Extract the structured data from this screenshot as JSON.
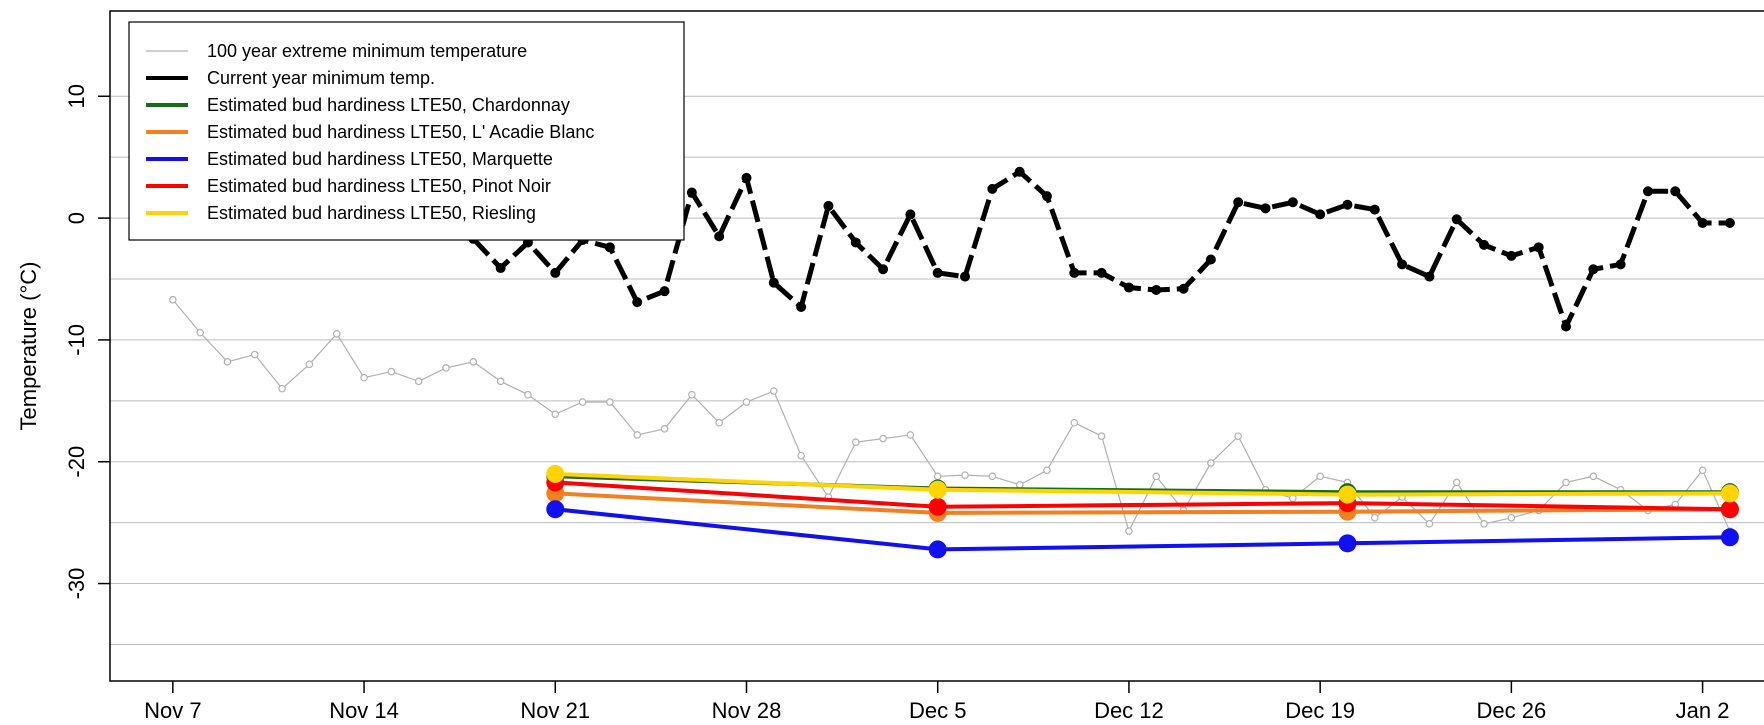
{
  "chart_data": {
    "type": "line",
    "title": "",
    "xlabel": "",
    "ylabel": "Temperature (°C)",
    "ylim": [
      -38,
      17
    ],
    "y_ticks": [
      10,
      0,
      -10,
      -20,
      -30
    ],
    "y_gridlines": [
      10,
      5,
      0,
      -5,
      -10,
      -15,
      -20,
      -25,
      -30,
      -35
    ],
    "x_tick_labels": [
      "Nov 7",
      "Nov 14",
      "Nov 21",
      "Nov 28",
      "Dec 5",
      "Dec 12",
      "Dec 19",
      "Dec 26",
      "Jan 2"
    ],
    "x_tick_days": [
      0,
      7,
      14,
      21,
      28,
      35,
      42,
      49,
      56
    ],
    "x_range_days": [
      -2.3,
      59.2
    ],
    "grid": "horizontal",
    "legend_position": "top-left",
    "series": [
      {
        "name": "100 year extreme minimum temperature",
        "color": "#b0b0b0",
        "style": "thin-line-open-points",
        "x_days": [
          0,
          1,
          2,
          3,
          4,
          5,
          6,
          7,
          8,
          9,
          10,
          11,
          12,
          13,
          14,
          15,
          16,
          17,
          18,
          19,
          20,
          21,
          22,
          23,
          24,
          25,
          26,
          27,
          28,
          29,
          30,
          31,
          32,
          33,
          34,
          35,
          36,
          37,
          38,
          39,
          40,
          41,
          42,
          43,
          44,
          45,
          46,
          47,
          48,
          49,
          50,
          51,
          52,
          53,
          54,
          55,
          56,
          57
        ],
        "values": [
          -6.7,
          -9.4,
          -11.8,
          -11.2,
          -14.0,
          -12.0,
          -9.5,
          -13.1,
          -12.6,
          -13.4,
          -12.3,
          -11.8,
          -13.4,
          -14.5,
          -16.1,
          -15.1,
          -15.1,
          -17.8,
          -17.3,
          -14.5,
          -16.8,
          -15.1,
          -14.2,
          -19.5,
          -22.9,
          -18.4,
          -18.1,
          -17.8,
          -21.2,
          -21.1,
          -21.2,
          -21.9,
          -20.7,
          -16.8,
          -17.9,
          -25.7,
          -21.2,
          -24.0,
          -20.1,
          -17.9,
          -22.3,
          -23.0,
          -21.2,
          -21.7,
          -24.6,
          -22.9,
          -25.1,
          -21.7,
          -25.1,
          -24.6,
          -24.0,
          -21.7,
          -21.2,
          -22.3,
          -24.0,
          -23.5,
          -20.7,
          -25.7
        ]
      },
      {
        "name": "Current year minimum temp.",
        "color": "#000000",
        "style": "thick-dashed-filled-points",
        "x_days": [
          11,
          12,
          13,
          14,
          15,
          16,
          17,
          18,
          19,
          20,
          21,
          22,
          23,
          24,
          25,
          26,
          27,
          28,
          29,
          30,
          31,
          32,
          33,
          34,
          35,
          36,
          37,
          38,
          39,
          40,
          41,
          42,
          43,
          44,
          45,
          46,
          47,
          48,
          49,
          50,
          51,
          52,
          53,
          54,
          55,
          56,
          57
        ],
        "values": [
          -1.7,
          -4.1,
          -2.0,
          -4.5,
          -1.8,
          -2.4,
          -6.9,
          -6.0,
          2.1,
          -1.5,
          3.3,
          -5.3,
          -7.3,
          1.0,
          -2.0,
          -4.2,
          0.3,
          -4.5,
          -4.8,
          2.4,
          3.8,
          1.8,
          -4.5,
          -4.5,
          -5.7,
          -5.9,
          -5.8,
          -3.4,
          1.3,
          0.8,
          1.3,
          0.3,
          1.1,
          0.7,
          -3.8,
          -4.8,
          -0.1,
          -2.2,
          -3.1,
          -2.4,
          -8.9,
          -4.2,
          -3.8,
          2.2,
          2.2,
          -0.4,
          -0.4
        ]
      },
      {
        "name": "Estimated bud hardiness LTE50, Chardonnay",
        "color": "#1a6b1a",
        "style": "line-large-points",
        "x_days": [
          14,
          28,
          43,
          57
        ],
        "values": [
          -21.2,
          -22.2,
          -22.5,
          -22.5
        ]
      },
      {
        "name": "Estimated bud hardiness LTE50, L' Acadie Blanc",
        "color": "#f08020",
        "style": "line-large-points",
        "x_days": [
          14,
          28,
          43,
          57
        ],
        "values": [
          -22.6,
          -24.2,
          -24.1,
          -23.9
        ]
      },
      {
        "name": "Estimated bud hardiness LTE50, Marquette",
        "color": "#1010f0",
        "style": "line-large-points",
        "x_days": [
          14,
          28,
          43,
          57
        ],
        "values": [
          -23.9,
          -27.2,
          -26.7,
          -26.2
        ]
      },
      {
        "name": "Estimated bud hardiness LTE50, Pinot Noir",
        "color": "#ff0000",
        "style": "line-large-points",
        "x_days": [
          14,
          28,
          43,
          57
        ],
        "values": [
          -21.7,
          -23.7,
          -23.4,
          -23.9
        ]
      },
      {
        "name": "Estimated bud hardiness LTE50, Riesling",
        "color": "#ffd400",
        "style": "line-large-points",
        "x_days": [
          14,
          28,
          43,
          57
        ],
        "values": [
          -21.0,
          -22.3,
          -22.7,
          -22.6
        ]
      }
    ]
  }
}
